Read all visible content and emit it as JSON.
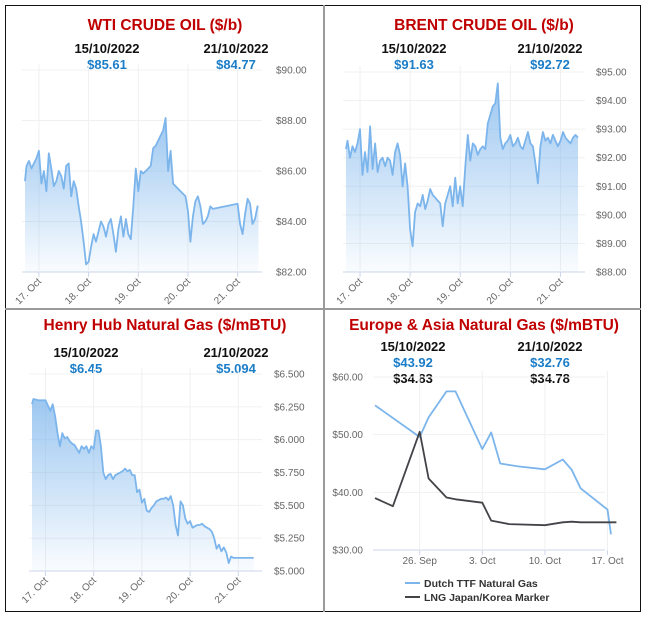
{
  "colors": {
    "title_red": "#c00000",
    "value_blue": "#1a7dc8",
    "series_blue": "#7cb5ec",
    "series_dark": "#434348",
    "grid": "#eeeeee"
  },
  "panels": [
    {
      "title": "WTI CRUDE OIL ($/b)",
      "date_left": "15/10/2022",
      "date_right": "21/10/2022",
      "value_left": "$85.61",
      "value_right": "$84.77"
    },
    {
      "title": "BRENT CRUDE OIL ($/b)",
      "date_left": "15/10/2022",
      "date_right": "21/10/2022",
      "value_left": "$91.63",
      "value_right": "$92.72"
    },
    {
      "title": "Henry Hub Natural Gas ($/mBTU)",
      "date_left": "15/10/2022",
      "date_right": "21/10/2022",
      "value_left": "$6.45",
      "value_right": "$5.094"
    },
    {
      "title": "Europe & Asia Natural Gas ($/mBTU)",
      "date_left": "15/10/2022",
      "date_right": "21/10/2022",
      "value_left": "$43.92",
      "value_right": "$32.76",
      "value_left_2": "$34.83",
      "value_right_2": "$34.78"
    }
  ],
  "chart_data": [
    {
      "type": "area",
      "title": "WTI CRUDE OIL ($/b)",
      "xlabel": "",
      "ylabel": "",
      "ylim": [
        82,
        90
      ],
      "xlim": [
        16.7,
        21.45
      ],
      "yticks": [
        82,
        84,
        86,
        88,
        90
      ],
      "ytick_labels": [
        "$82.00",
        "$84.00",
        "$86.00",
        "$88.00",
        "$90.00"
      ],
      "xticks": [
        17,
        18,
        19,
        20,
        21
      ],
      "xtick_labels": [
        "17. Oct",
        "18. Oct",
        "19. Oct",
        "20. Oct",
        "21. Oct"
      ],
      "grid": true,
      "series": [
        {
          "name": "WTI",
          "x": [
            16.72,
            16.75,
            16.8,
            16.85,
            16.9,
            16.95,
            17.0,
            17.05,
            17.1,
            17.15,
            17.2,
            17.25,
            17.3,
            17.35,
            17.4,
            17.45,
            17.5,
            17.55,
            17.6,
            17.65,
            17.7,
            17.75,
            17.8,
            17.85,
            17.9,
            17.95,
            18.0,
            18.05,
            18.1,
            18.15,
            18.2,
            18.25,
            18.3,
            18.35,
            18.4,
            18.45,
            18.5,
            18.55,
            18.6,
            18.65,
            18.7,
            18.75,
            18.8,
            18.85,
            18.9,
            18.95,
            19.0,
            19.05,
            19.1,
            19.15,
            19.2,
            19.25,
            19.3,
            19.35,
            19.4,
            19.45,
            19.5,
            19.55,
            19.6,
            19.65,
            19.7,
            19.75,
            19.8,
            19.85,
            19.9,
            19.95,
            20.0,
            20.05,
            20.1,
            20.15,
            20.2,
            20.25,
            20.3,
            20.35,
            20.4,
            20.45,
            20.5,
            21.0,
            21.05,
            21.1,
            21.15,
            21.2,
            21.25,
            21.3,
            21.35,
            21.4,
            21.42
          ],
          "y": [
            85.6,
            86.2,
            86.4,
            86.1,
            86.3,
            86.5,
            86.8,
            85.5,
            86.0,
            85.2,
            86.7,
            86.1,
            85.4,
            85.6,
            86.0,
            85.8,
            85.3,
            86.2,
            86.3,
            85.0,
            85.6,
            85.3,
            84.6,
            84.0,
            83.2,
            82.3,
            82.4,
            83.0,
            83.5,
            83.2,
            83.6,
            84.0,
            83.8,
            83.4,
            83.9,
            84.1,
            83.5,
            82.8,
            83.7,
            84.2,
            83.4,
            84.1,
            83.5,
            83.3,
            84.6,
            86.1,
            85.2,
            86.0,
            85.9,
            86.0,
            86.1,
            86.2,
            86.9,
            87.0,
            87.2,
            87.4,
            87.6,
            88.1,
            86.0,
            86.8,
            85.5,
            85.4,
            85.3,
            85.2,
            85.1,
            85.0,
            84.4,
            83.2,
            84.2,
            84.8,
            85.0,
            84.6,
            83.9,
            84.0,
            84.2,
            84.6,
            84.5,
            84.7,
            83.9,
            83.5,
            84.3,
            84.9,
            84.7,
            83.9,
            84.1,
            84.6,
            84.6
          ]
        }
      ]
    },
    {
      "type": "area",
      "title": "BRENT CRUDE OIL ($/b)",
      "xlabel": "",
      "ylabel": "",
      "ylim": [
        88,
        95
      ],
      "xlim": [
        16.7,
        21.45
      ],
      "yticks": [
        88,
        89,
        90,
        91,
        92,
        93,
        94,
        95
      ],
      "ytick_labels": [
        "$88.00",
        "$89.00",
        "$90.00",
        "$91.00",
        "$92.00",
        "$93.00",
        "$94.00",
        "$95.00"
      ],
      "xticks": [
        17,
        18,
        19,
        20,
        21
      ],
      "xtick_labels": [
        "17. Oct",
        "18. Oct",
        "19. Oct",
        "20. Oct",
        "21. Oct"
      ],
      "grid": true,
      "series": [
        {
          "name": "Brent",
          "x": [
            16.72,
            16.75,
            16.8,
            16.85,
            16.9,
            16.95,
            17.0,
            17.05,
            17.1,
            17.15,
            17.2,
            17.25,
            17.3,
            17.35,
            17.4,
            17.45,
            17.5,
            17.55,
            17.6,
            17.65,
            17.7,
            17.75,
            17.8,
            17.85,
            17.9,
            17.95,
            18.0,
            18.05,
            18.1,
            18.15,
            18.2,
            18.25,
            18.3,
            18.35,
            18.4,
            18.45,
            18.5,
            18.55,
            18.6,
            18.65,
            18.7,
            18.75,
            18.8,
            18.85,
            18.9,
            18.95,
            19.0,
            19.05,
            19.1,
            19.15,
            19.2,
            19.25,
            19.3,
            19.35,
            19.4,
            19.45,
            19.5,
            19.55,
            19.6,
            19.65,
            19.7,
            19.75,
            19.8,
            19.85,
            19.9,
            19.95,
            20.0,
            20.05,
            20.1,
            20.15,
            20.2,
            20.25,
            20.3,
            20.35,
            20.4,
            20.45,
            20.5,
            20.55,
            20.6,
            20.65,
            20.7,
            20.75,
            20.8,
            20.85,
            20.9,
            20.95,
            21.0,
            21.05,
            21.1,
            21.15,
            21.2,
            21.25,
            21.3,
            21.35
          ],
          "y": [
            92.3,
            92.6,
            92.0,
            92.4,
            92.2,
            92.5,
            93.0,
            91.4,
            92.2,
            91.5,
            93.1,
            91.6,
            92.5,
            91.5,
            91.9,
            92.0,
            91.7,
            92.0,
            91.9,
            91.4,
            92.2,
            92.5,
            92.1,
            91.0,
            91.8,
            91.0,
            89.5,
            88.9,
            90.1,
            90.4,
            90.3,
            90.7,
            90.2,
            90.5,
            90.9,
            90.7,
            90.6,
            90.5,
            90.4,
            89.6,
            90.4,
            90.7,
            91.0,
            90.3,
            91.3,
            90.4,
            91.0,
            90.3,
            91.7,
            92.8,
            91.9,
            92.5,
            92.4,
            92.1,
            92.3,
            92.4,
            92.3,
            93.2,
            93.5,
            93.8,
            93.9,
            94.6,
            92.7,
            92.3,
            92.5,
            92.6,
            92.8,
            92.4,
            92.5,
            92.7,
            92.4,
            92.3,
            92.6,
            92.9,
            92.5,
            92.4,
            91.8,
            91.1,
            92.4,
            92.9,
            92.6,
            92.7,
            92.5,
            92.8,
            92.6,
            92.4,
            92.6,
            92.9,
            92.7,
            92.6,
            92.5,
            92.7,
            92.8,
            92.7
          ]
        }
      ]
    },
    {
      "type": "area",
      "title": "Henry Hub Natural Gas ($/mBTU)",
      "xlabel": "",
      "ylabel": "",
      "ylim": [
        5.0,
        6.5
      ],
      "xlim": [
        16.7,
        21.45
      ],
      "yticks": [
        5.0,
        5.25,
        5.5,
        5.75,
        6.0,
        6.25,
        6.5
      ],
      "ytick_labels": [
        "$5.000",
        "$5.250",
        "$5.500",
        "$5.750",
        "$6.000",
        "$6.250",
        "$6.500"
      ],
      "xticks": [
        17,
        18,
        19,
        20,
        21
      ],
      "xtick_labels": [
        "17. Oct",
        "18. Oct",
        "19. Oct",
        "20. Oct",
        "21. Oct"
      ],
      "grid": true,
      "series": [
        {
          "name": "Henry Hub",
          "x": [
            16.72,
            16.75,
            16.85,
            16.95,
            17.0,
            17.05,
            17.1,
            17.15,
            17.2,
            17.25,
            17.3,
            17.35,
            17.4,
            17.45,
            17.5,
            17.55,
            17.6,
            17.65,
            17.7,
            17.75,
            17.8,
            17.85,
            17.9,
            17.95,
            18.0,
            18.05,
            18.1,
            18.15,
            18.2,
            18.25,
            18.3,
            18.35,
            18.4,
            18.45,
            18.5,
            18.55,
            18.6,
            18.65,
            18.7,
            18.75,
            18.8,
            18.85,
            18.9,
            18.95,
            19.0,
            19.05,
            19.1,
            19.15,
            19.2,
            19.25,
            19.3,
            19.35,
            19.4,
            19.45,
            19.5,
            19.55,
            19.6,
            19.65,
            19.7,
            19.75,
            19.8,
            19.85,
            19.9,
            19.95,
            20.0,
            20.05,
            20.1,
            20.15,
            20.2,
            20.25,
            20.3,
            20.35,
            20.4,
            20.45,
            20.5,
            20.55,
            20.6,
            20.65,
            20.7,
            20.75,
            20.8,
            20.85,
            20.9,
            20.95,
            21.0,
            21.05,
            21.1,
            21.15,
            21.2,
            21.25,
            21.3,
            21.32
          ],
          "y": [
            6.27,
            6.31,
            6.3,
            6.3,
            6.3,
            6.26,
            6.22,
            6.27,
            6.18,
            6.05,
            5.95,
            6.05,
            6.01,
            6.02,
            5.99,
            5.97,
            5.96,
            5.93,
            5.9,
            5.95,
            5.93,
            5.95,
            5.9,
            5.95,
            5.93,
            6.07,
            6.07,
            5.95,
            5.75,
            5.7,
            5.73,
            5.74,
            5.7,
            5.73,
            5.74,
            5.75,
            5.76,
            5.78,
            5.76,
            5.77,
            5.73,
            5.73,
            5.6,
            5.62,
            5.52,
            5.55,
            5.46,
            5.45,
            5.48,
            5.5,
            5.53,
            5.54,
            5.55,
            5.55,
            5.56,
            5.54,
            5.57,
            5.5,
            5.35,
            5.27,
            5.53,
            5.5,
            5.4,
            5.36,
            5.38,
            5.33,
            5.34,
            5.35,
            5.35,
            5.36,
            5.34,
            5.33,
            5.32,
            5.3,
            5.25,
            5.17,
            5.2,
            5.15,
            5.18,
            5.14,
            5.06,
            5.11,
            5.1,
            5.1,
            5.1,
            5.1,
            5.1,
            5.1,
            5.1,
            5.1,
            5.1,
            5.1
          ]
        }
      ]
    },
    {
      "type": "line",
      "title": "Europe & Asia Natural Gas ($/mBTU)",
      "xlabel": "",
      "ylabel": "",
      "ylim": [
        30,
        60
      ],
      "xlim": [
        21,
        46.5
      ],
      "yticks": [
        30,
        40,
        50,
        60
      ],
      "ytick_labels": [
        "$30.00",
        "$40.00",
        "$50.00",
        "$60.00"
      ],
      "xticks": [
        26,
        33,
        40,
        47
      ],
      "xtick_labels": [
        "26. Sep",
        "3. Oct",
        "10. Oct",
        "17. Oct"
      ],
      "grid": true,
      "legend": "bottom",
      "series": [
        {
          "name": "Dutch TTF Natural Gas",
          "color": "#7cb5ec",
          "x": [
            21,
            26,
            27,
            29,
            30,
            33,
            34,
            35,
            37,
            40,
            42,
            43,
            44,
            47,
            47.4
          ],
          "y": [
            55.1,
            49.6,
            53.0,
            57.5,
            57.5,
            47.5,
            50.4,
            45.0,
            44.5,
            44.0,
            45.7,
            43.9,
            40.7,
            37.0,
            32.7
          ]
        },
        {
          "name": "LNG Japan/Korea Marker",
          "color": "#434348",
          "x": [
            21,
            23,
            26,
            27,
            29,
            30,
            33,
            34,
            36,
            40,
            42,
            43,
            44,
            47,
            48
          ],
          "y": [
            39.0,
            37.6,
            50.5,
            42.4,
            39.1,
            38.8,
            38.2,
            35.1,
            34.5,
            34.3,
            34.8,
            34.9,
            34.8,
            34.8,
            34.8
          ]
        }
      ]
    }
  ]
}
